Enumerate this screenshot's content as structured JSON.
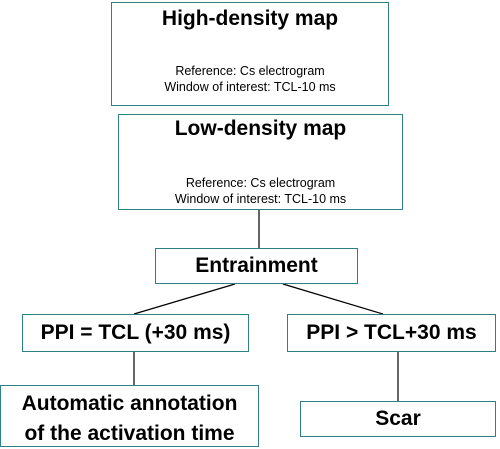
{
  "colors": {
    "box_border": "#2f7f86",
    "connector": "#000000",
    "text": "#000000"
  },
  "nodes": {
    "high_density": {
      "title": "High-density map",
      "reference": "Reference: Cs electrogram",
      "window": "Window of interest: TCL-10 ms"
    },
    "low_density": {
      "title": "Low-density map",
      "reference": "Reference: Cs electrogram",
      "window": "Window of interest: TCL-10 ms"
    },
    "entrainment": {
      "title": "Entrainment"
    },
    "ppi_equal": {
      "title": "PPI = TCL (+30 ms)"
    },
    "ppi_greater": {
      "title": "PPI > TCL+30 ms"
    },
    "automatic": {
      "line1": "Automatic annotation",
      "line2": "of the activation time"
    },
    "scar": {
      "title": "Scar"
    }
  },
  "edges": [
    {
      "from": "low_density",
      "to": "entrainment"
    },
    {
      "from": "entrainment",
      "to": "ppi_equal"
    },
    {
      "from": "entrainment",
      "to": "ppi_greater"
    },
    {
      "from": "ppi_equal",
      "to": "automatic"
    },
    {
      "from": "ppi_greater",
      "to": "scar"
    }
  ]
}
